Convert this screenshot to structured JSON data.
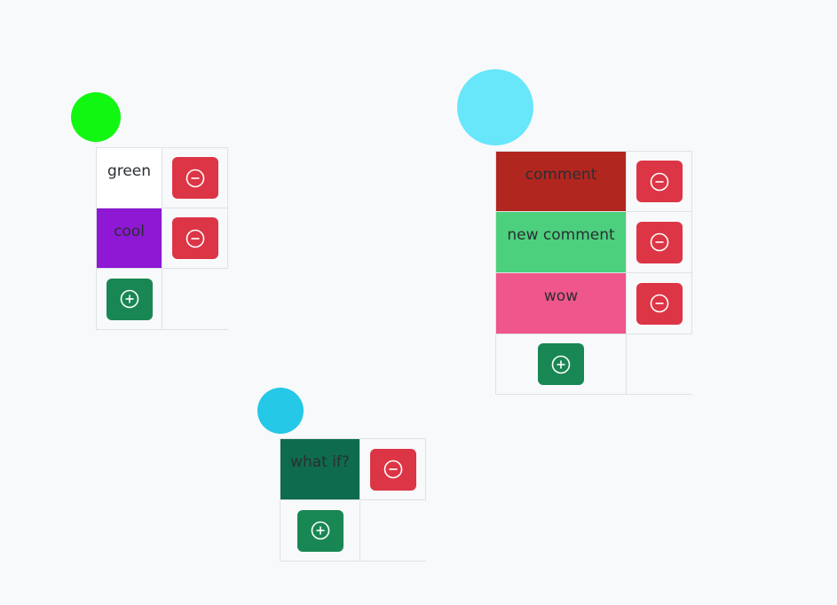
{
  "icons": {
    "remove": "minus-circle-icon",
    "add": "plus-circle-icon"
  },
  "colors": {
    "remove_button": "#dc3545",
    "add_button": "#198754",
    "cell_border": "#dfe2e6",
    "background": "#f8f9fb"
  },
  "nodes": [
    {
      "circle_color": "#12f712",
      "comments": [
        {
          "text": "green",
          "color": "#ffffff"
        },
        {
          "text": "cool",
          "color": "#8e18d4"
        }
      ]
    },
    {
      "circle_color": "#68e6fa",
      "comments": [
        {
          "text": "comment",
          "color": "#b1261e"
        },
        {
          "text": "new comment",
          "color": "#4cd07d"
        },
        {
          "text": "wow",
          "color": "#ef568b"
        }
      ]
    },
    {
      "circle_color": "#25c8e6",
      "comments": [
        {
          "text": "what if?",
          "color": "#0f6b4e"
        }
      ]
    }
  ]
}
